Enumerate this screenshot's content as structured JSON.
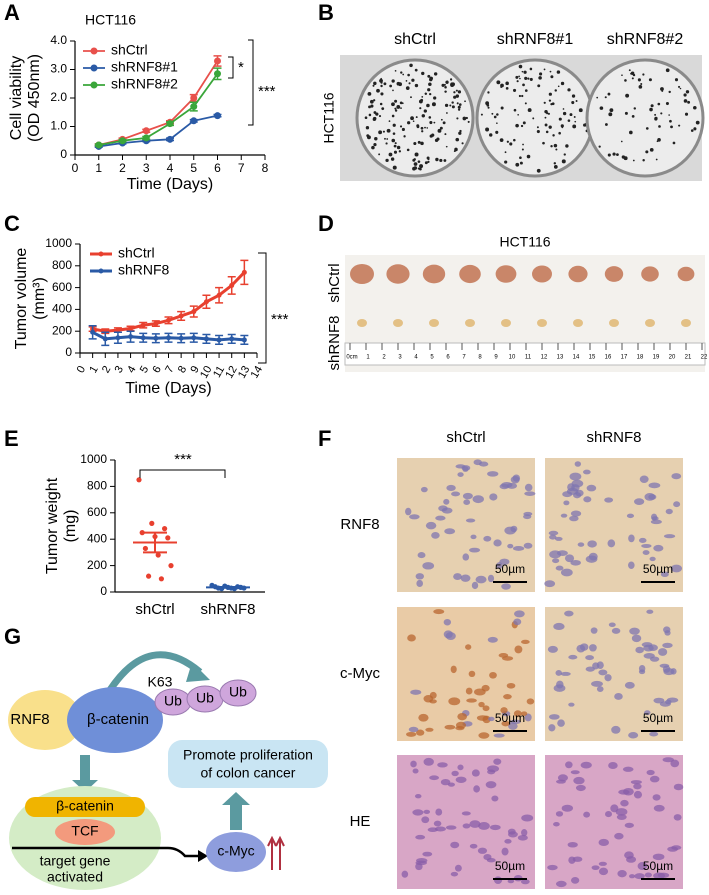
{
  "panel_labels": [
    "A",
    "B",
    "C",
    "D",
    "E",
    "F",
    "G"
  ],
  "chart_data": [
    {
      "type": "line",
      "title": "HCT116",
      "x_label": "Time (Days)",
      "y_label": [
        "Cell viability",
        "(OD 450nm)"
      ],
      "x": [
        1,
        2,
        3,
        4,
        5,
        6
      ],
      "xlim": [
        0,
        8
      ],
      "xticks": [
        0,
        1,
        2,
        3,
        4,
        5,
        6,
        7,
        8
      ],
      "ylim": [
        0,
        4
      ],
      "yticks": [
        0,
        {
          "value": 1,
          "label": "1.0"
        },
        {
          "value": 2,
          "label": "2.0"
        },
        {
          "value": 3,
          "label": "3.0"
        },
        {
          "value": 4,
          "label": "4.0"
        }
      ],
      "series": [
        {
          "name": "shCtrl",
          "color": "#e8504b",
          "values": [
            0.35,
            0.55,
            0.85,
            1.15,
            2.0,
            3.3
          ],
          "errors": [
            0.04,
            0.04,
            0.05,
            0.05,
            0.12,
            0.18
          ]
        },
        {
          "name": "shRNF8#1",
          "color": "#2a5aa6",
          "values": [
            0.3,
            0.42,
            0.5,
            0.55,
            1.2,
            1.38
          ],
          "errors": [
            0.03,
            0.03,
            0.03,
            0.04,
            0.04,
            0.04
          ]
        },
        {
          "name": "shRNF8#2",
          "color": "#3aa63a",
          "values": [
            0.35,
            0.5,
            0.6,
            1.1,
            1.7,
            2.85
          ],
          "errors": [
            0.03,
            0.04,
            0.05,
            0.06,
            0.15,
            0.2
          ]
        }
      ],
      "annotations": [
        "*",
        "***"
      ],
      "legend": "upper left"
    },
    {
      "type": "line",
      "x_label": "Time (Days)",
      "y_label": [
        "Tumor volume",
        "(mm³)"
      ],
      "x": [
        1,
        2,
        3,
        4,
        5,
        6,
        7,
        8,
        9,
        10,
        11,
        12,
        13
      ],
      "xlim": [
        0,
        14
      ],
      "xticks": [
        0,
        1,
        2,
        3,
        4,
        5,
        6,
        7,
        8,
        9,
        10,
        11,
        12,
        13,
        14
      ],
      "ylim": [
        0,
        1000
      ],
      "yticks": [
        0,
        200,
        400,
        600,
        800,
        1000
      ],
      "series": [
        {
          "name": "shCtrl",
          "color": "#e8402f",
          "values": [
            220,
            200,
            210,
            225,
            255,
            270,
            300,
            340,
            380,
            470,
            530,
            620,
            740
          ],
          "errors": [
            20,
            20,
            20,
            20,
            25,
            25,
            30,
            40,
            50,
            60,
            70,
            80,
            110
          ]
        },
        {
          "name": "shRNF8",
          "color": "#2a5aa6",
          "values": [
            190,
            130,
            140,
            150,
            140,
            135,
            140,
            135,
            140,
            130,
            120,
            130,
            120
          ],
          "errors": [
            60,
            60,
            50,
            50,
            40,
            40,
            40,
            40,
            40,
            40,
            40,
            40,
            40
          ]
        }
      ],
      "annotations": [
        "***"
      ],
      "legend": "upper left"
    },
    {
      "type": "strip",
      "y_label": [
        "Tumor weight",
        "(mg)"
      ],
      "categories": [
        "shCtrl",
        "shRNF8"
      ],
      "colors": [
        "#e8402f",
        "#2a5aa6"
      ],
      "ylim": [
        0,
        1000
      ],
      "yticks": [
        0,
        200,
        400,
        600,
        800,
        1000
      ],
      "values": [
        [
          850,
          520,
          480,
          450,
          420,
          410,
          330,
          280,
          200,
          120,
          100
        ],
        [
          50,
          45,
          40,
          40,
          35,
          35,
          30,
          30,
          30,
          25,
          25
        ]
      ],
      "mean": [
        375,
        35
      ],
      "sem": [
        75,
        3
      ],
      "annotations": [
        "***"
      ]
    }
  ],
  "panel_b": {
    "columns": [
      "shCtrl",
      "shRNF8#1",
      "shRNF8#2"
    ],
    "row_label": "HCT116"
  },
  "panel_d": {
    "title": "HCT116",
    "rows": [
      "shCtrl",
      "shRNF8"
    ],
    "ruler": [
      "0cm",
      "1",
      "2",
      "3",
      "4",
      "5",
      "6",
      "7",
      "8",
      "9",
      "10",
      "11",
      "12",
      "13",
      "14",
      "15",
      "16",
      "17",
      "18",
      "19",
      "20",
      "21",
      "22"
    ]
  },
  "panel_f": {
    "columns": [
      "shCtrl",
      "shRNF8"
    ],
    "rows": [
      "RNF8",
      "c-Myc",
      "HE"
    ],
    "scale_bar": "50µm"
  },
  "panel_g": {
    "rnf8": "RNF8",
    "beta_catenin": "β-catenin",
    "k63": "K63",
    "ub": [
      "Ub",
      "Ub",
      "Ub"
    ],
    "outcome": [
      "Promote proliferation",
      "of colon cancer"
    ],
    "nucleus_beta_catenin": "β-catenin",
    "tcf": "TCF",
    "target": [
      "target gene",
      "activated"
    ],
    "cmyc": "c-Myc"
  }
}
